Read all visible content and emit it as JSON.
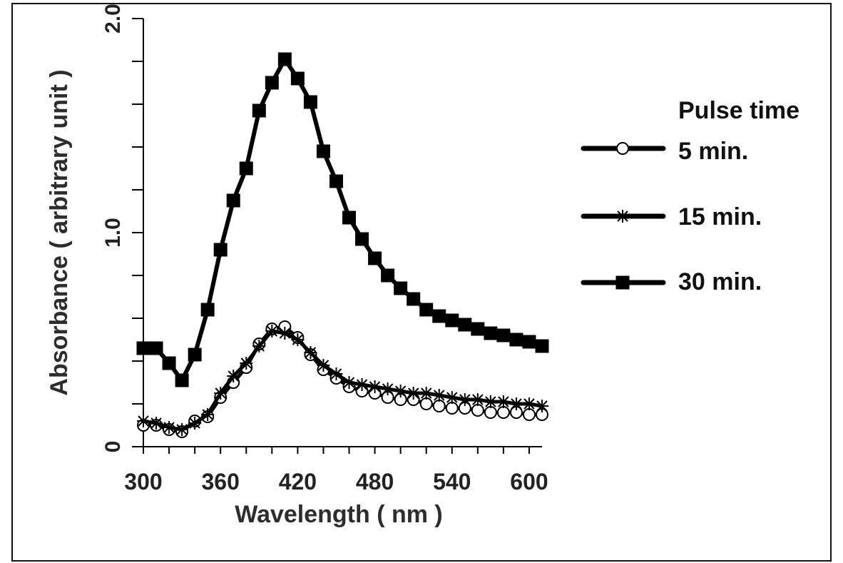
{
  "chart_data": {
    "type": "line",
    "title": "",
    "xlabel": "Wavelength ( nm )",
    "ylabel": "Absorbance ( arbitrary unit )",
    "xlim": [
      300,
      610
    ],
    "ylim": [
      0,
      2.0
    ],
    "xticks": [
      300,
      360,
      420,
      480,
      540,
      600
    ],
    "yticks": [
      0,
      1.0,
      2.0
    ],
    "xtick_labels": [
      "300",
      "360",
      "420",
      "480",
      "540",
      "600"
    ],
    "ytick_labels": [
      "0",
      "1.0",
      "2.0"
    ],
    "grid": false,
    "legend": {
      "title": "Pulse time",
      "placement": "right"
    },
    "series": [
      {
        "name": "5 min.",
        "marker": "circle-open",
        "color": "#000000",
        "x": [
          300,
          310,
          320,
          330,
          340,
          350,
          360,
          370,
          380,
          390,
          400,
          410,
          420,
          430,
          440,
          450,
          460,
          470,
          480,
          490,
          500,
          510,
          520,
          530,
          540,
          550,
          560,
          570,
          580,
          590,
          600,
          610
        ],
        "y": [
          0.1,
          0.1,
          0.08,
          0.07,
          0.12,
          0.14,
          0.23,
          0.3,
          0.37,
          0.48,
          0.55,
          0.56,
          0.51,
          0.43,
          0.36,
          0.32,
          0.28,
          0.26,
          0.25,
          0.23,
          0.22,
          0.22,
          0.2,
          0.19,
          0.18,
          0.18,
          0.17,
          0.16,
          0.16,
          0.16,
          0.15,
          0.15
        ]
      },
      {
        "name": "15 min.",
        "marker": "asterisk",
        "color": "#000000",
        "x": [
          300,
          310,
          320,
          330,
          340,
          350,
          360,
          370,
          380,
          390,
          400,
          410,
          420,
          430,
          440,
          450,
          460,
          470,
          480,
          490,
          500,
          510,
          520,
          530,
          540,
          550,
          560,
          570,
          580,
          590,
          600,
          610
        ],
        "y": [
          0.12,
          0.11,
          0.09,
          0.08,
          0.11,
          0.15,
          0.25,
          0.33,
          0.39,
          0.47,
          0.54,
          0.53,
          0.5,
          0.44,
          0.38,
          0.34,
          0.3,
          0.29,
          0.28,
          0.27,
          0.26,
          0.25,
          0.25,
          0.24,
          0.23,
          0.22,
          0.22,
          0.21,
          0.21,
          0.2,
          0.2,
          0.19
        ]
      },
      {
        "name": "30 min.",
        "marker": "square",
        "color": "#000000",
        "x": [
          300,
          310,
          320,
          330,
          340,
          350,
          360,
          370,
          380,
          390,
          400,
          410,
          420,
          430,
          440,
          450,
          460,
          470,
          480,
          490,
          500,
          510,
          520,
          530,
          540,
          550,
          560,
          570,
          580,
          590,
          600,
          610
        ],
        "y": [
          0.46,
          0.46,
          0.39,
          0.31,
          0.43,
          0.64,
          0.92,
          1.15,
          1.3,
          1.57,
          1.7,
          1.81,
          1.72,
          1.61,
          1.38,
          1.24,
          1.07,
          0.97,
          0.88,
          0.8,
          0.74,
          0.69,
          0.64,
          0.61,
          0.59,
          0.57,
          0.55,
          0.53,
          0.52,
          0.5,
          0.49,
          0.47
        ]
      }
    ]
  }
}
